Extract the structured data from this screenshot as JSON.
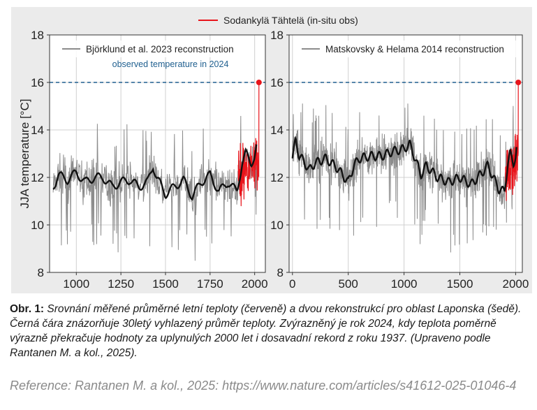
{
  "legend": {
    "label": "Sodankylä Tähtelä (in-situ obs)",
    "color": "#e8141b",
    "placement": "top-center"
  },
  "chart_data": [
    {
      "type": "line",
      "ylabel": "JJA temperature [°C]",
      "xlim": [
        850,
        2060
      ],
      "ylim": [
        8,
        18
      ],
      "x_ticks": [
        1000,
        1250,
        1500,
        1750,
        2000
      ],
      "y_ticks": [
        8,
        10,
        12,
        14,
        16,
        18
      ],
      "grid": true,
      "legend_entry": "Björklund et al. 2023 reconstruction",
      "reference_line": {
        "y": 16.0,
        "label": "observed temperature in 2024",
        "color": "#1f5f8f"
      },
      "record_2024": {
        "x": 2024,
        "y": 16.0
      },
      "series": [
        {
          "name": "Björklund et al. 2023 reconstruction",
          "color": "#8c8c8c",
          "x_start": 870,
          "x_end": 2010,
          "smooth_x": [
            870,
            900,
            950,
            1000,
            1050,
            1100,
            1150,
            1200,
            1250,
            1300,
            1350,
            1400,
            1430,
            1450,
            1500,
            1550,
            1600,
            1650,
            1700,
            1750,
            1800,
            1850,
            1900,
            1930,
            1950,
            1980,
            2000,
            2010
          ],
          "smooth_y": [
            11.6,
            12.1,
            11.9,
            12.2,
            11.8,
            12.0,
            12.0,
            11.6,
            11.8,
            11.9,
            11.6,
            11.8,
            12.5,
            12.0,
            11.3,
            11.6,
            11.9,
            11.2,
            11.8,
            12.1,
            11.4,
            11.8,
            11.4,
            12.6,
            13.0,
            12.6,
            12.9,
            13.3
          ]
        },
        {
          "name": "Sodankylä Tähtelä (in-situ obs)",
          "color": "#e8141b",
          "x_start": 1908,
          "x_end": 2024,
          "y_min": 9.6,
          "y_max": 16.0
        }
      ]
    },
    {
      "type": "line",
      "ylabel": "",
      "xlim": [
        -30,
        2060
      ],
      "ylim": [
        8,
        18
      ],
      "x_ticks": [
        0,
        500,
        1000,
        1500,
        2000
      ],
      "y_ticks": [
        8,
        10,
        12,
        14,
        16,
        18
      ],
      "grid": true,
      "legend_entry": "Matskovsky & Helama 2014 reconstruction",
      "reference_line": {
        "y": 16.0,
        "color": "#1f5f8f"
      },
      "record_2024": {
        "x": 2024,
        "y": 16.0
      },
      "series": [
        {
          "name": "Matskovsky & Helama 2014 reconstruction",
          "color": "#8c8c8c",
          "x_start": 0,
          "x_end": 2010,
          "smooth_x": [
            0,
            30,
            60,
            100,
            150,
            200,
            300,
            400,
            500,
            550,
            600,
            700,
            800,
            900,
            1000,
            1050,
            1100,
            1150,
            1200,
            1300,
            1400,
            1500,
            1600,
            1700,
            1750,
            1800,
            1850,
            1900,
            1930,
            1950,
            1980,
            2000,
            2010
          ],
          "smooth_y": [
            12.8,
            13.6,
            12.9,
            12.7,
            12.3,
            12.6,
            12.8,
            12.4,
            11.8,
            12.5,
            12.8,
            12.9,
            12.9,
            13.1,
            13.2,
            13.4,
            12.8,
            12.1,
            12.5,
            12.0,
            11.8,
            12.0,
            11.7,
            12.2,
            12.5,
            12.0,
            11.5,
            11.4,
            12.6,
            13.0,
            12.6,
            12.9,
            13.3
          ]
        },
        {
          "name": "Sodankylä Tähtelä (in-situ obs)",
          "color": "#e8141b",
          "x_start": 1908,
          "x_end": 2024,
          "y_min": 9.6,
          "y_max": 16.0
        }
      ]
    }
  ],
  "caption": {
    "label": "Obr. 1:",
    "text": "Srovnání měřené průměrné letní teploty (červeně) a dvou rekonstrukcí pro oblast Laponska (šedě). Černá čára znázorňuje 30letý vyhlazený průměr teploty. Zvýrazněný je rok 2024, kdy teplota poměrně výrazně překračuje hodnoty za uplynulých 2000 let i dosavadní rekord z roku 1937. (Upraveno podle Rantanen M. a kol., 2025)."
  },
  "reference": "Reference: Rantanen M. a kol., 2025: https://www.nature.com/articles/s41612-025-01046-4"
}
